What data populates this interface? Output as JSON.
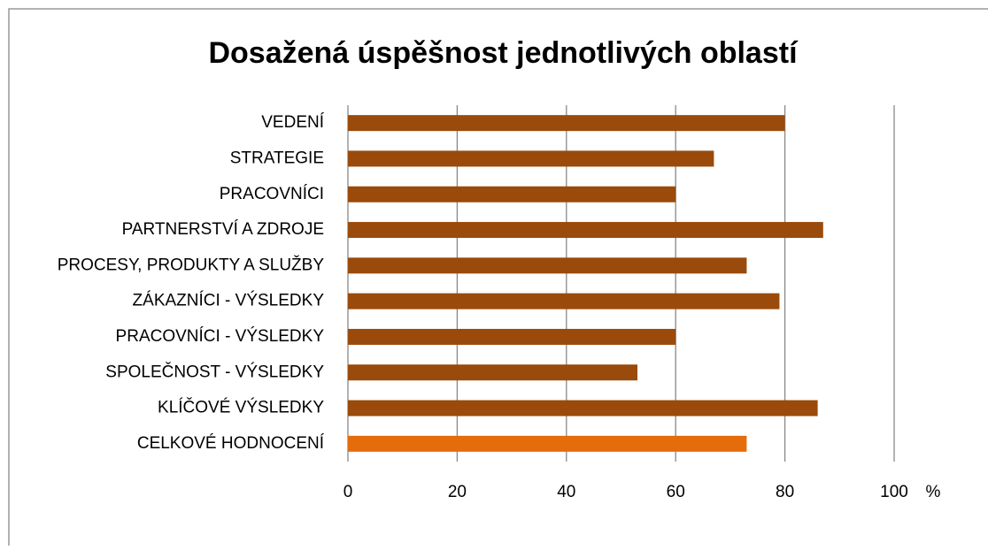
{
  "chart_data": {
    "type": "bar",
    "orientation": "horizontal",
    "title": "Dosažená úspěšnost jednotlivých oblastí",
    "categories": [
      "VEDENÍ",
      "STRATEGIE",
      "PRACOVNÍCI",
      "PARTNERSTVÍ A ZDROJE",
      "PROCESY, PRODUKTY A SLUŽBY",
      "ZÁKAZNÍCI - VÝSLEDKY",
      "PRACOVNÍCI - VÝSLEDKY",
      "SPOLEČNOST - VÝSLEDKY",
      "KLÍČOVÉ VÝSLEDKY",
      "CELKOVÉ HODNOCENÍ"
    ],
    "values": [
      80,
      67,
      60,
      87,
      73,
      79,
      60,
      53,
      86,
      73
    ],
    "colors": [
      "#9a4a0a",
      "#9a4a0a",
      "#9a4a0a",
      "#9a4a0a",
      "#9a4a0a",
      "#9a4a0a",
      "#9a4a0a",
      "#9a4a0a",
      "#9a4a0a",
      "#e46c0a"
    ],
    "xlim": [
      0,
      100
    ],
    "xticks": [
      0,
      20,
      40,
      60,
      80,
      100
    ],
    "x_unit": "%",
    "grid": true
  }
}
